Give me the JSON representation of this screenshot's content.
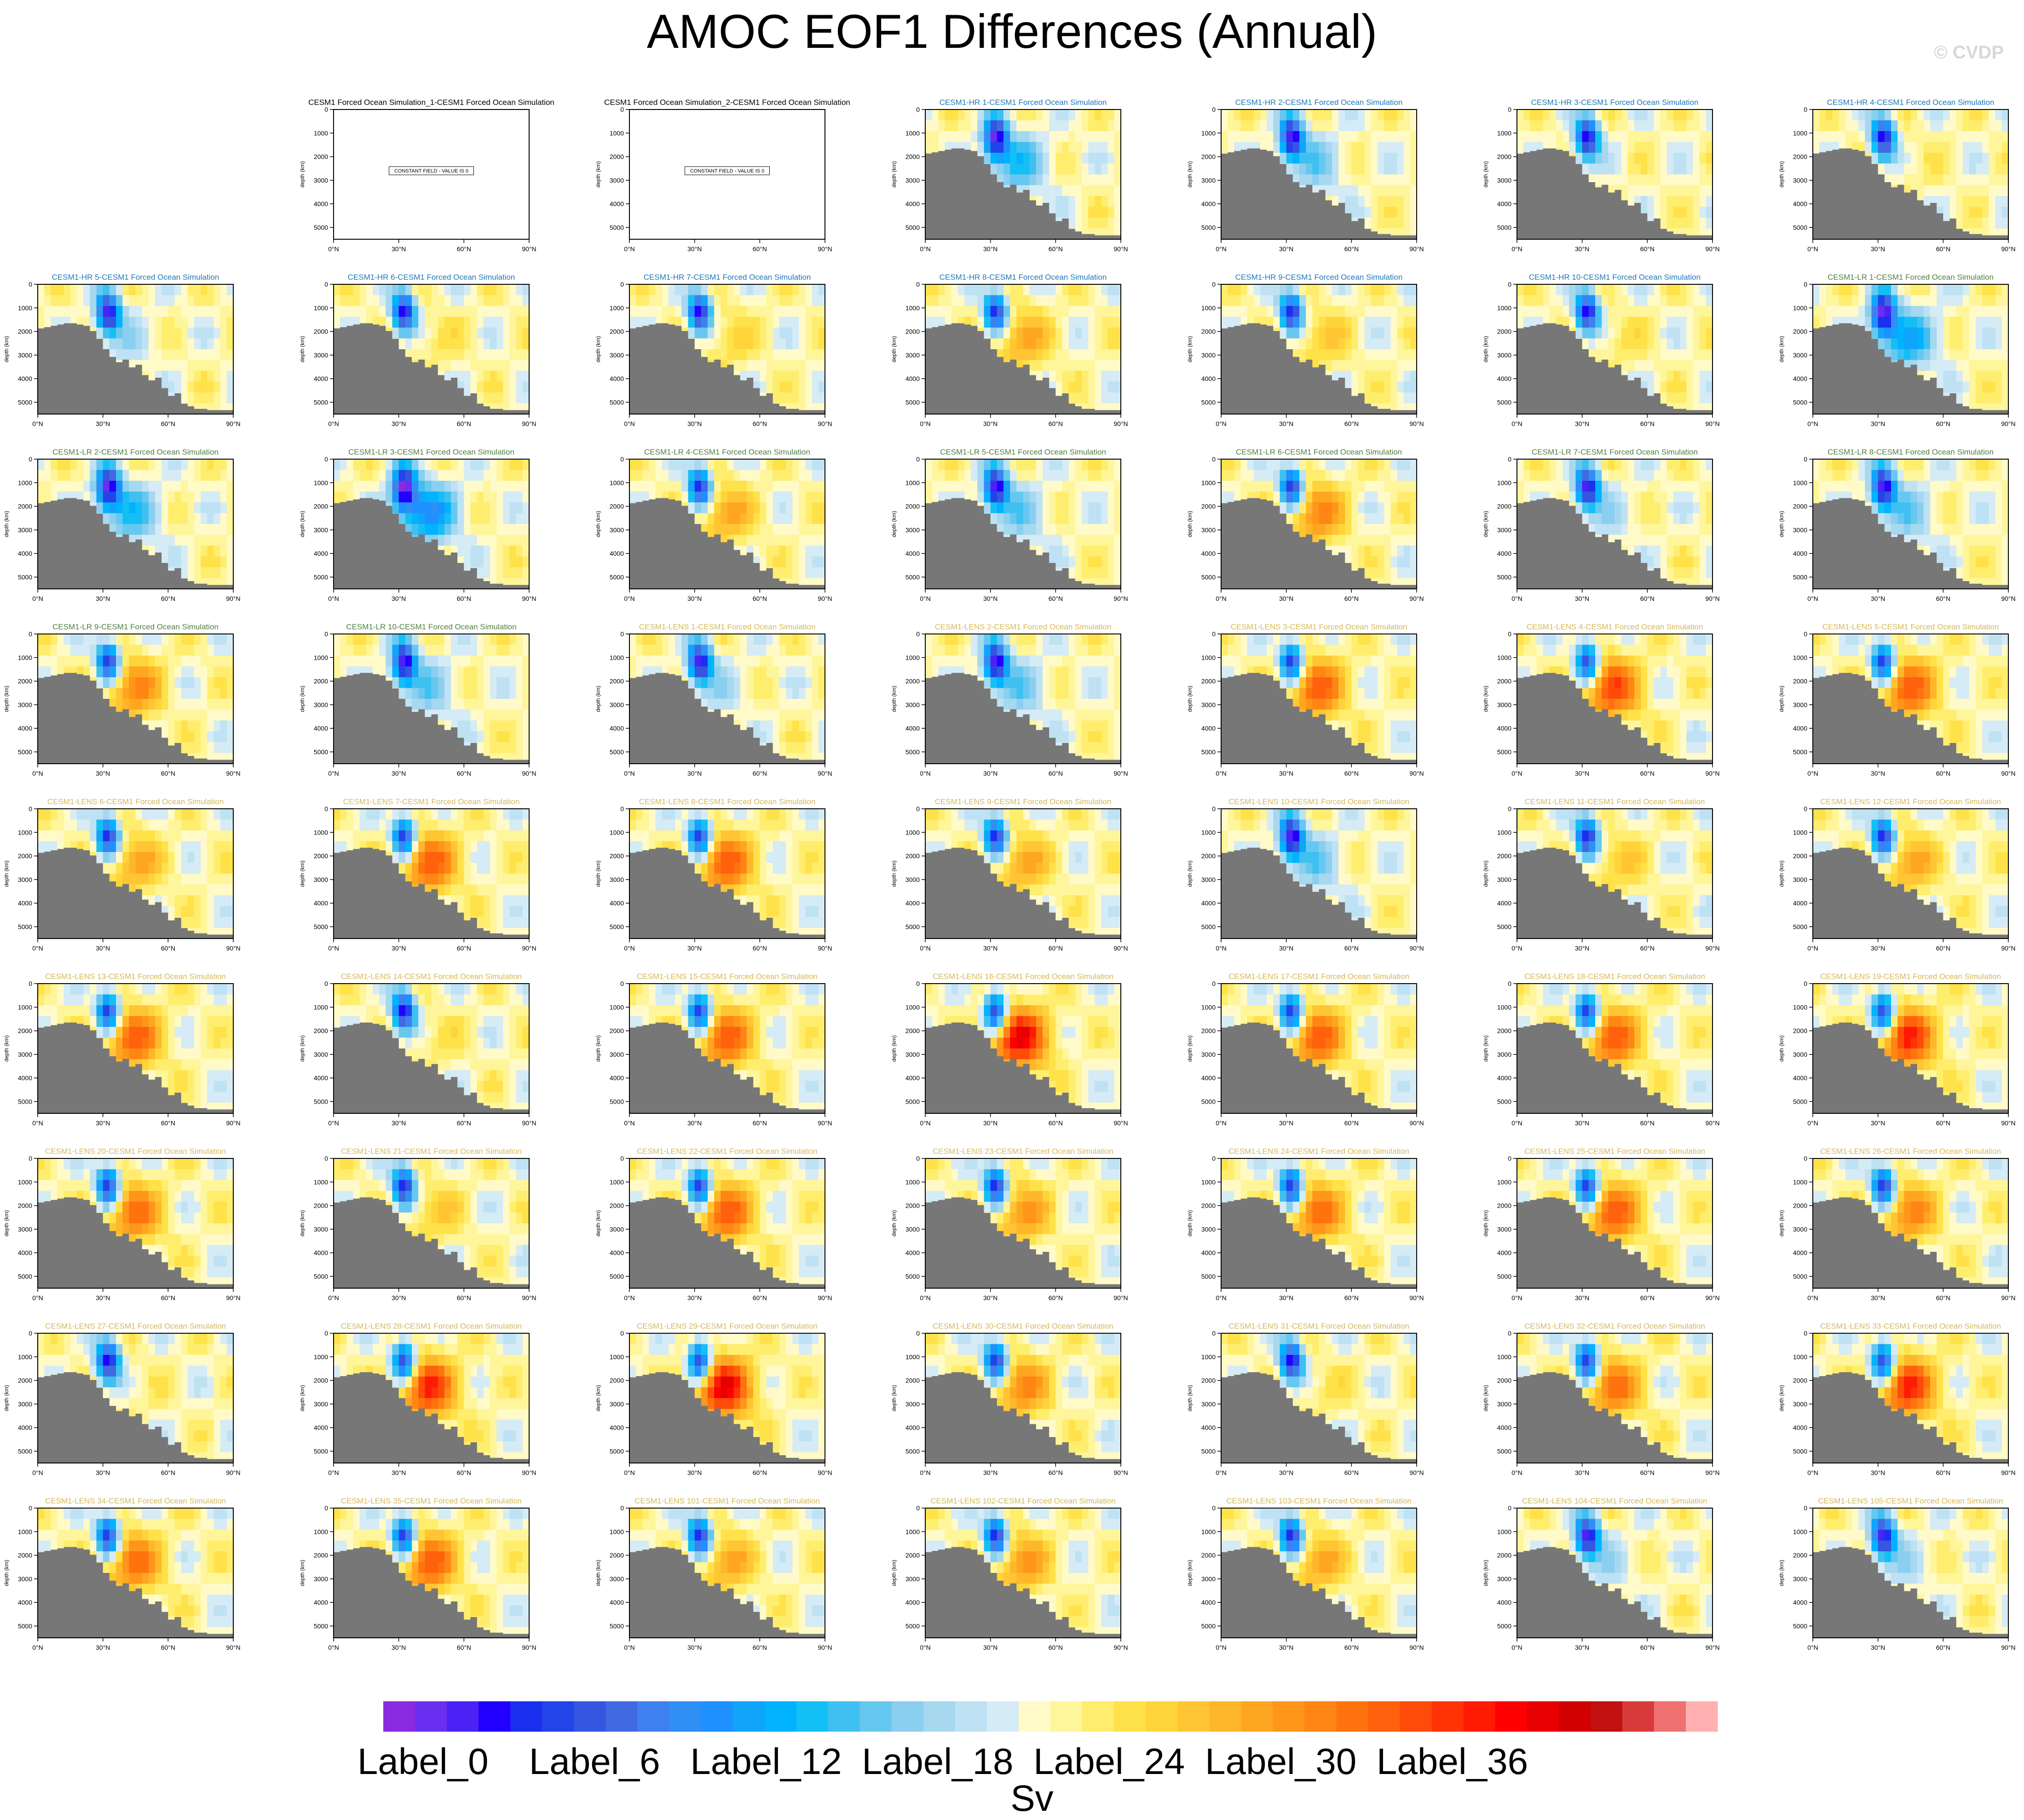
{
  "title": "AMOC EOF1 Differences (Annual)",
  "watermark": "© CVDP",
  "colors": {
    "HR": "#1f77b4",
    "LR": "#4f7f3f",
    "LENS": "#d4b85a",
    "base": "#000000",
    "land": "#777777"
  },
  "chart_data": {
    "type": "heatmap",
    "grid": {
      "rows": 9,
      "cols": 7
    },
    "xlabel": "",
    "ylabel": "depth (km)",
    "xticks": [
      "0°N",
      "30°N",
      "60°N",
      "90°N"
    ],
    "yticks": [
      "0",
      "1000",
      "2000",
      "3000",
      "4000",
      "5000"
    ],
    "xlim": [
      0,
      90
    ],
    "ylim": [
      0,
      5500
    ],
    "constant_field_text": "CONSTANT FIELD - VALUE IS 0",
    "panels": [
      {
        "title": "",
        "group": "empty"
      },
      {
        "title": "CESM1 Forced Ocean Simulation_1-CESM1 Forced Ocean Simulation",
        "group": "base"
      },
      {
        "title": "CESM1 Forced Ocean Simulation_2-CESM1 Forced Ocean Simulation",
        "group": "base"
      },
      {
        "title": "CESM1-HR 1-CESM1 Forced Ocean Simulation",
        "group": "HR",
        "pos": -0.3
      },
      {
        "title": "CESM1-HR 2-CESM1 Forced Ocean Simulation",
        "group": "HR",
        "pos": -0.2
      },
      {
        "title": "CESM1-HR 3-CESM1 Forced Ocean Simulation",
        "group": "HR",
        "pos": 0.0
      },
      {
        "title": "CESM1-HR 4-CESM1 Forced Ocean Simulation",
        "group": "HR",
        "pos": 0.05
      },
      {
        "title": "CESM1-HR 5-CESM1 Forced Ocean Simulation",
        "group": "HR",
        "pos": -0.1
      },
      {
        "title": "CESM1-HR 6-CESM1 Forced Ocean Simulation",
        "group": "HR",
        "pos": 0.1
      },
      {
        "title": "CESM1-HR 7-CESM1 Forced Ocean Simulation",
        "group": "HR",
        "pos": 0.15
      },
      {
        "title": "CESM1-HR 8-CESM1 Forced Ocean Simulation",
        "group": "HR",
        "pos": 0.3
      },
      {
        "title": "CESM1-HR 9-CESM1 Forced Ocean Simulation",
        "group": "HR",
        "pos": 0.2
      },
      {
        "title": "CESM1-HR 10-CESM1 Forced Ocean Simulation",
        "group": "HR",
        "pos": 0.1
      },
      {
        "title": "CESM1-LR 1-CESM1 Forced Ocean Simulation",
        "group": "LR",
        "pos": -0.4
      },
      {
        "title": "CESM1-LR 2-CESM1 Forced Ocean Simulation",
        "group": "LR",
        "pos": -0.3
      },
      {
        "title": "CESM1-LR 3-CESM1 Forced Ocean Simulation",
        "group": "LR",
        "pos": -0.5
      },
      {
        "title": "CESM1-LR 4-CESM1 Forced Ocean Simulation",
        "group": "LR",
        "pos": 0.3
      },
      {
        "title": "CESM1-LR 5-CESM1 Forced Ocean Simulation",
        "group": "LR",
        "pos": -0.2
      },
      {
        "title": "CESM1-LR 6-CESM1 Forced Ocean Simulation",
        "group": "LR",
        "pos": 0.4
      },
      {
        "title": "CESM1-LR 7-CESM1 Forced Ocean Simulation",
        "group": "LR",
        "pos": -0.1
      },
      {
        "title": "CESM1-LR 8-CESM1 Forced Ocean Simulation",
        "group": "LR",
        "pos": -0.2
      },
      {
        "title": "CESM1-LR 9-CESM1 Forced Ocean Simulation",
        "group": "LR",
        "pos": 0.4
      },
      {
        "title": "CESM1-LR 10-CESM1 Forced Ocean Simulation",
        "group": "LR",
        "pos": -0.2
      },
      {
        "title": "CESM1-LENS 1-CESM1 Forced Ocean Simulation",
        "group": "LENS",
        "pos": -0.1
      },
      {
        "title": "CESM1-LENS 2-CESM1 Forced Ocean Simulation",
        "group": "LENS",
        "pos": -0.2
      },
      {
        "title": "CESM1-LENS 3-CESM1 Forced Ocean Simulation",
        "group": "LENS",
        "pos": 0.5
      },
      {
        "title": "CESM1-LENS 4-CESM1 Forced Ocean Simulation",
        "group": "LENS",
        "pos": 0.55
      },
      {
        "title": "CESM1-LENS 5-CESM1 Forced Ocean Simulation",
        "group": "LENS",
        "pos": 0.5
      },
      {
        "title": "CESM1-LENS 6-CESM1 Forced Ocean Simulation",
        "group": "LENS",
        "pos": 0.3
      },
      {
        "title": "CESM1-LENS 7-CESM1 Forced Ocean Simulation",
        "group": "LENS",
        "pos": 0.5
      },
      {
        "title": "CESM1-LENS 8-CESM1 Forced Ocean Simulation",
        "group": "LENS",
        "pos": 0.5
      },
      {
        "title": "CESM1-LENS 9-CESM1 Forced Ocean Simulation",
        "group": "LENS",
        "pos": 0.3
      },
      {
        "title": "CESM1-LENS 10-CESM1 Forced Ocean Simulation",
        "group": "LENS",
        "pos": -0.2
      },
      {
        "title": "CESM1-LENS 11-CESM1 Forced Ocean Simulation",
        "group": "LENS",
        "pos": 0.2
      },
      {
        "title": "CESM1-LENS 12-CESM1 Forced Ocean Simulation",
        "group": "LENS",
        "pos": 0.3
      },
      {
        "title": "CESM1-LENS 13-CESM1 Forced Ocean Simulation",
        "group": "LENS",
        "pos": 0.5
      },
      {
        "title": "CESM1-LENS 14-CESM1 Forced Ocean Simulation",
        "group": "LENS",
        "pos": 0.1
      },
      {
        "title": "CESM1-LENS 15-CESM1 Forced Ocean Simulation",
        "group": "LENS",
        "pos": 0.5
      },
      {
        "title": "CESM1-LENS 16-CESM1 Forced Ocean Simulation",
        "group": "LENS",
        "pos": 0.7
      },
      {
        "title": "CESM1-LENS 17-CESM1 Forced Ocean Simulation",
        "group": "LENS",
        "pos": 0.5
      },
      {
        "title": "CESM1-LENS 18-CESM1 Forced Ocean Simulation",
        "group": "LENS",
        "pos": 0.5
      },
      {
        "title": "CESM1-LENS 19-CESM1 Forced Ocean Simulation",
        "group": "LENS",
        "pos": 0.6
      },
      {
        "title": "CESM1-LENS 20-CESM1 Forced Ocean Simulation",
        "group": "LENS",
        "pos": 0.45
      },
      {
        "title": "CESM1-LENS 21-CESM1 Forced Ocean Simulation",
        "group": "LENS",
        "pos": 0.2
      },
      {
        "title": "CESM1-LENS 22-CESM1 Forced Ocean Simulation",
        "group": "LENS",
        "pos": 0.5
      },
      {
        "title": "CESM1-LENS 23-CESM1 Forced Ocean Simulation",
        "group": "LENS",
        "pos": 0.35
      },
      {
        "title": "CESM1-LENS 24-CESM1 Forced Ocean Simulation",
        "group": "LENS",
        "pos": 0.45
      },
      {
        "title": "CESM1-LENS 25-CESM1 Forced Ocean Simulation",
        "group": "LENS",
        "pos": 0.5
      },
      {
        "title": "CESM1-LENS 26-CESM1 Forced Ocean Simulation",
        "group": "LENS",
        "pos": 0.4
      },
      {
        "title": "CESM1-LENS 27-CESM1 Forced Ocean Simulation",
        "group": "LENS",
        "pos": 0.05
      },
      {
        "title": "CESM1-LENS 28-CESM1 Forced Ocean Simulation",
        "group": "LENS",
        "pos": 0.6
      },
      {
        "title": "CESM1-LENS 29-CESM1 Forced Ocean Simulation",
        "group": "LENS",
        "pos": 0.7
      },
      {
        "title": "CESM1-LENS 30-CESM1 Forced Ocean Simulation",
        "group": "LENS",
        "pos": 0.4
      },
      {
        "title": "CESM1-LENS 31-CESM1 Forced Ocean Simulation",
        "group": "LENS",
        "pos": 0.1
      },
      {
        "title": "CESM1-LENS 32-CESM1 Forced Ocean Simulation",
        "group": "LENS",
        "pos": 0.45
      },
      {
        "title": "CESM1-LENS 33-CESM1 Forced Ocean Simulation",
        "group": "LENS",
        "pos": 0.6
      },
      {
        "title": "CESM1-LENS 34-CESM1 Forced Ocean Simulation",
        "group": "LENS",
        "pos": 0.45
      },
      {
        "title": "CESM1-LENS 35-CESM1 Forced Ocean Simulation",
        "group": "LENS",
        "pos": 0.5
      },
      {
        "title": "CESM1-LENS 101-CESM1 Forced Ocean Simulation",
        "group": "LENS",
        "pos": 0.3
      },
      {
        "title": "CESM1-LENS 102-CESM1 Forced Ocean Simulation",
        "group": "LENS",
        "pos": 0.35
      },
      {
        "title": "CESM1-LENS 103-CESM1 Forced Ocean Simulation",
        "group": "LENS",
        "pos": 0.3
      },
      {
        "title": "CESM1-LENS 104-CESM1 Forced Ocean Simulation",
        "group": "LENS",
        "pos": -0.1
      },
      {
        "title": "CESM1-LENS 105-CESM1 Forced Ocean Simulation",
        "group": "LENS",
        "pos": -0.1
      }
    ],
    "colorbar": {
      "label": "Sv",
      "tick_labels": [
        "Label_0",
        "Label_6",
        "Label_12",
        "Label_18",
        "Label_24",
        "Label_30",
        "Label_36"
      ],
      "tick_steps": [
        0,
        6,
        12,
        18,
        24,
        30,
        36
      ],
      "colors": [
        "#8a2be2",
        "#6a2ef0",
        "#4a22f5",
        "#2200ff",
        "#1a2ff0",
        "#2244e8",
        "#3456e0",
        "#4169e1",
        "#3f80ef",
        "#2f8ff5",
        "#1e90ff",
        "#10a4fa",
        "#00b2ff",
        "#14bff5",
        "#3fc0f0",
        "#66c8f0",
        "#8acfef",
        "#a6d8f0",
        "#bee2f3",
        "#d5ebf5",
        "#fffac8",
        "#fff59a",
        "#ffed6e",
        "#ffe14a",
        "#ffd43b",
        "#ffc533",
        "#ffb72a",
        "#ffa621",
        "#ff9519",
        "#ff8514",
        "#ff730f",
        "#ff610c",
        "#ff4b09",
        "#ff3306",
        "#ff1a03",
        "#ff0000",
        "#e80000",
        "#d20000",
        "#c21010",
        "#d83a3a",
        "#ee7070",
        "#ffb0b0"
      ]
    }
  }
}
